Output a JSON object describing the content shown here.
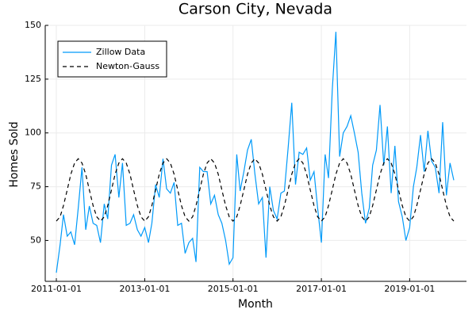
{
  "chart_data": {
    "type": "line",
    "title": "Carson City, Nevada",
    "x_label": "Month",
    "y_label": "Homes Sold",
    "x": [
      "2011-01-01",
      "2011-02-01",
      "2011-03-01",
      "2011-04-01",
      "2011-05-01",
      "2011-06-01",
      "2011-07-01",
      "2011-08-01",
      "2011-09-01",
      "2011-10-01",
      "2011-11-01",
      "2011-12-01",
      "2012-01-01",
      "2012-02-01",
      "2012-03-01",
      "2012-04-01",
      "2012-05-01",
      "2012-06-01",
      "2012-07-01",
      "2012-08-01",
      "2012-09-01",
      "2012-10-01",
      "2012-11-01",
      "2012-12-01",
      "2013-01-01",
      "2013-02-01",
      "2013-03-01",
      "2013-04-01",
      "2013-05-01",
      "2013-06-01",
      "2013-07-01",
      "2013-08-01",
      "2013-09-01",
      "2013-10-01",
      "2013-11-01",
      "2013-12-01",
      "2014-01-01",
      "2014-02-01",
      "2014-03-01",
      "2014-04-01",
      "2014-05-01",
      "2014-06-01",
      "2014-07-01",
      "2014-08-01",
      "2014-09-01",
      "2014-10-01",
      "2014-11-01",
      "2014-12-01",
      "2015-01-01",
      "2015-02-01",
      "2015-03-01",
      "2015-04-01",
      "2015-05-01",
      "2015-06-01",
      "2015-07-01",
      "2015-08-01",
      "2015-09-01",
      "2015-10-01",
      "2015-11-01",
      "2015-12-01",
      "2016-01-01",
      "2016-02-01",
      "2016-03-01",
      "2016-04-01",
      "2016-05-01",
      "2016-06-01",
      "2016-07-01",
      "2016-08-01",
      "2016-09-01",
      "2016-10-01",
      "2016-11-01",
      "2016-12-01",
      "2017-01-01",
      "2017-02-01",
      "2017-03-01",
      "2017-04-01",
      "2017-05-01",
      "2017-06-01",
      "2017-07-01",
      "2017-08-01",
      "2017-09-01",
      "2017-10-01",
      "2017-11-01",
      "2017-12-01",
      "2018-01-01",
      "2018-02-01",
      "2018-03-01",
      "2018-04-01",
      "2018-05-01",
      "2018-06-01",
      "2018-07-01",
      "2018-08-01",
      "2018-09-01",
      "2018-10-01",
      "2018-11-01",
      "2018-12-01",
      "2019-01-01",
      "2019-02-01",
      "2019-03-01",
      "2019-04-01",
      "2019-05-01",
      "2019-06-01",
      "2019-07-01",
      "2019-08-01",
      "2019-09-01",
      "2019-10-01",
      "2019-11-01",
      "2019-12-01",
      "2020-01-01"
    ],
    "series": [
      {
        "name": "Zillow Data",
        "color": "#009af9",
        "dash": false,
        "values": [
          35,
          48,
          62,
          52,
          54,
          48,
          65,
          84,
          55,
          66,
          58,
          57,
          49,
          67,
          60,
          85,
          90,
          70,
          86,
          57,
          58,
          62,
          55,
          52,
          56,
          49,
          58,
          76,
          70,
          88,
          74,
          72,
          77,
          57,
          58,
          44,
          49,
          51,
          40,
          84,
          82,
          82,
          67,
          71,
          62,
          58,
          50,
          39,
          42,
          90,
          73,
          82,
          92,
          97,
          81,
          67,
          70,
          42,
          75,
          64,
          60,
          72,
          73,
          93,
          114,
          76,
          91,
          90,
          93,
          78,
          82,
          65,
          49,
          90,
          79,
          120,
          147,
          89,
          100,
          103,
          108,
          100,
          91,
          72,
          58,
          65,
          85,
          92,
          113,
          85,
          103,
          72,
          94,
          68,
          61,
          50,
          56,
          75,
          84,
          99,
          82,
          101,
          87,
          84,
          72,
          105,
          71,
          86,
          78
        ]
      },
      {
        "name": "Newton-Gauss",
        "color": "#000000",
        "dash": true,
        "values": [
          59,
          61,
          66.2,
          73.5,
          80.8,
          86,
          88,
          86,
          80.8,
          73.5,
          66.2,
          61,
          59,
          61,
          66.2,
          73.5,
          80.8,
          86,
          88,
          86,
          80.8,
          73.5,
          66.2,
          61,
          59,
          61,
          66.2,
          73.5,
          80.8,
          86,
          88,
          86,
          80.8,
          73.5,
          66.2,
          61,
          59,
          61,
          66.2,
          73.5,
          80.8,
          86,
          88,
          86,
          80.8,
          73.5,
          66.2,
          61,
          59,
          61,
          66.2,
          73.5,
          80.8,
          86,
          88,
          86,
          80.8,
          73.5,
          66.2,
          61,
          59,
          61,
          66.2,
          73.5,
          80.8,
          86,
          88,
          86,
          80.8,
          73.5,
          66.2,
          61,
          59,
          61,
          66.2,
          73.5,
          80.8,
          86,
          88,
          86,
          80.8,
          73.5,
          66.2,
          61,
          59,
          61,
          66.2,
          73.5,
          80.8,
          86,
          88,
          86,
          80.8,
          73.5,
          66.2,
          61,
          59,
          61,
          66.2,
          73.5,
          80.8,
          86,
          88,
          86,
          80.8,
          73.5,
          66.2,
          61,
          59
        ]
      }
    ],
    "xlim": [
      "2010-10-01",
      "2020-04-15"
    ],
    "xticks": [
      "2011-01-01",
      "2013-01-01",
      "2015-01-01",
      "2017-01-01",
      "2019-01-01"
    ],
    "ylim": [
      31,
      150
    ],
    "yticks": [
      50,
      75,
      100,
      125,
      150
    ],
    "grid": true,
    "legend": "top-left"
  }
}
